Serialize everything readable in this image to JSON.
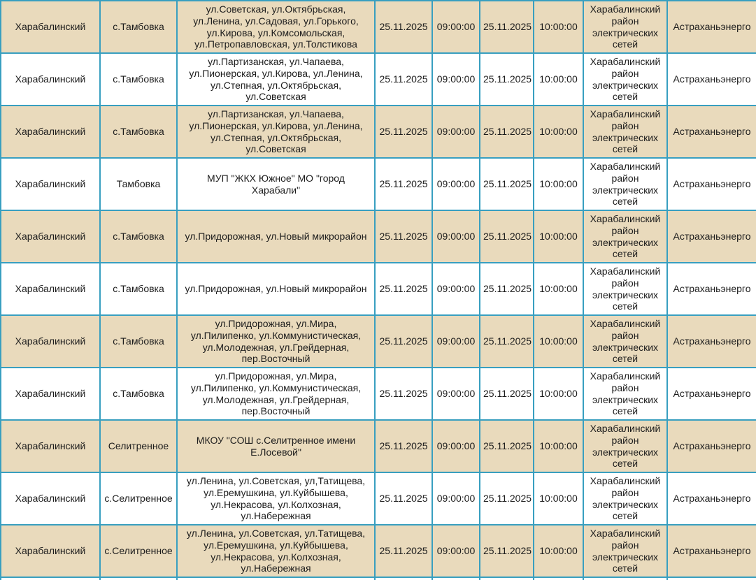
{
  "table": {
    "colors": {
      "border": "#389fc0",
      "row_alt_background": "#e9dabc",
      "row_base_background": "#ffffff",
      "text": "#1c1c1c"
    },
    "columns": [
      "district",
      "settlement",
      "streets",
      "start-date",
      "start-time",
      "end-date",
      "end-time",
      "organization",
      "company"
    ],
    "rows": [
      [
        "Харабалинский",
        "с.Тамбовка",
        "ул.Советская, ул.Октябрьская, ул.Ленина, ул.Садовая, ул.Горького, ул.Кирова, ул.Комсомольская, ул.Петропавловская, ул.Толстикова",
        "25.11.2025",
        "09:00:00",
        "25.11.2025",
        "10:00:00",
        "Харабалинский район электрических сетей",
        "Астраханьэнерго"
      ],
      [
        "Харабалинский",
        "с.Тамбовка",
        "ул.Партизанская, ул.Чапаева, ул.Пионерская, ул.Кирова, ул.Ленина, ул.Степная, ул.Октябрьская, ул.Советская",
        "25.11.2025",
        "09:00:00",
        "25.11.2025",
        "10:00:00",
        "Харабалинский район электрических сетей",
        "Астраханьэнерго"
      ],
      [
        "Харабалинский",
        "с.Тамбовка",
        "ул.Партизанская, ул.Чапаева, ул.Пионерская, ул.Кирова, ул.Ленина, ул.Степная, ул.Октябрьская, ул.Советская",
        "25.11.2025",
        "09:00:00",
        "25.11.2025",
        "10:00:00",
        "Харабалинский район электрических сетей",
        "Астраханьэнерго"
      ],
      [
        "Харабалинский",
        "Тамбовка",
        "МУП \"ЖКХ Южное\" МО \"город Харабали\"",
        "25.11.2025",
        "09:00:00",
        "25.11.2025",
        "10:00:00",
        "Харабалинский район электрических сетей",
        "Астраханьэнерго"
      ],
      [
        "Харабалинский",
        "с.Тамбовка",
        "ул.Придорожная, ул.Новый микрорайон",
        "25.11.2025",
        "09:00:00",
        "25.11.2025",
        "10:00:00",
        "Харабалинский район электрических сетей",
        "Астраханьэнерго"
      ],
      [
        "Харабалинский",
        "с.Тамбовка",
        "ул.Придорожная, ул.Новый микрорайон",
        "25.11.2025",
        "09:00:00",
        "25.11.2025",
        "10:00:00",
        "Харабалинский район электрических сетей",
        "Астраханьэнерго"
      ],
      [
        "Харабалинский",
        "с.Тамбовка",
        "ул.Придорожная, ул.Мира, ул.Пилипенко, ул.Коммунистическая, ул.Молодежная, ул.Грейдерная, пер.Восточный",
        "25.11.2025",
        "09:00:00",
        "25.11.2025",
        "10:00:00",
        "Харабалинский район электрических сетей",
        "Астраханьэнерго"
      ],
      [
        "Харабалинский",
        "с.Тамбовка",
        "ул.Придорожная, ул.Мира, ул.Пилипенко, ул.Коммунистическая, ул.Молодежная, ул.Грейдерная, пер.Восточный",
        "25.11.2025",
        "09:00:00",
        "25.11.2025",
        "10:00:00",
        "Харабалинский район электрических сетей",
        "Астраханьэнерго"
      ],
      [
        "Харабалинский",
        "Селитренное",
        "МКОУ \"СОШ с.Селитренное имени Е.Лосевой\"",
        "25.11.2025",
        "09:00:00",
        "25.11.2025",
        "10:00:00",
        "Харабалинский район электрических сетей",
        "Астраханьэнерго"
      ],
      [
        "Харабалинский",
        "с.Селитренное",
        "ул.Ленина, ул.Советская, ул,Татищева, ул.Еремушкина, ул.Куйбышева, ул.Некрасова, ул.Колхозная, ул.Набережная",
        "25.11.2025",
        "09:00:00",
        "25.11.2025",
        "10:00:00",
        "Харабалинский район электрических сетей",
        "Астраханьэнерго"
      ],
      [
        "Харабалинский",
        "с.Селитренное",
        "ул.Ленина, ул.Советская, ул.Татищева, ул.Еремушкина, ул.Куйбышева, ул.Некрасова, ул.Колхозная, ул.Набережная",
        "25.11.2025",
        "09:00:00",
        "25.11.2025",
        "10:00:00",
        "Харабалинский район электрических сетей",
        "Астраханьэнерго"
      ]
    ]
  }
}
